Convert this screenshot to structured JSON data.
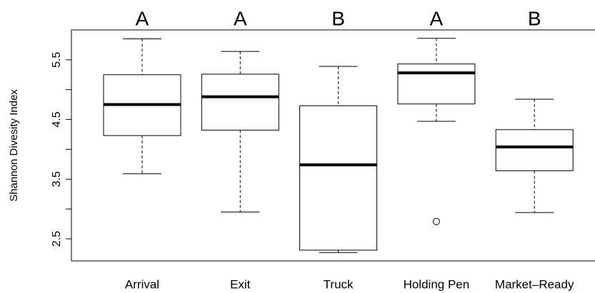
{
  "chart_data": {
    "type": "box",
    "y_label": "Shannon Divesity Index",
    "categories": [
      "Arrival",
      "Exit",
      "Truck",
      "Holding Pen",
      "Market–Ready"
    ],
    "group_labels": [
      "A",
      "A",
      "B",
      "A",
      "B"
    ],
    "boxes": [
      {
        "whisker_high": 5.85,
        "q3": 5.25,
        "median": 4.75,
        "q1": 4.23,
        "whisker_low": 3.59,
        "outliers": []
      },
      {
        "whisker_high": 5.64,
        "q3": 5.26,
        "median": 4.88,
        "q1": 4.32,
        "whisker_low": 2.95,
        "outliers": []
      },
      {
        "whisker_high": 5.39,
        "q3": 4.73,
        "median": 3.74,
        "q1": 2.31,
        "whisker_low": 2.27,
        "outliers": []
      },
      {
        "whisker_high": 5.86,
        "q3": 5.43,
        "median": 5.28,
        "q1": 4.76,
        "whisker_low": 4.47,
        "outliers": [
          2.79
        ]
      },
      {
        "whisker_high": 4.84,
        "q3": 4.33,
        "median": 4.04,
        "q1": 3.64,
        "whisker_low": 2.94,
        "outliers": []
      }
    ],
    "ylim": [
      2.13,
      6.0
    ],
    "yticks": [
      2.5,
      3.5,
      4.5,
      5.5
    ],
    "yminor_ticks": [
      3,
      4,
      5
    ],
    "color": "#000000"
  }
}
